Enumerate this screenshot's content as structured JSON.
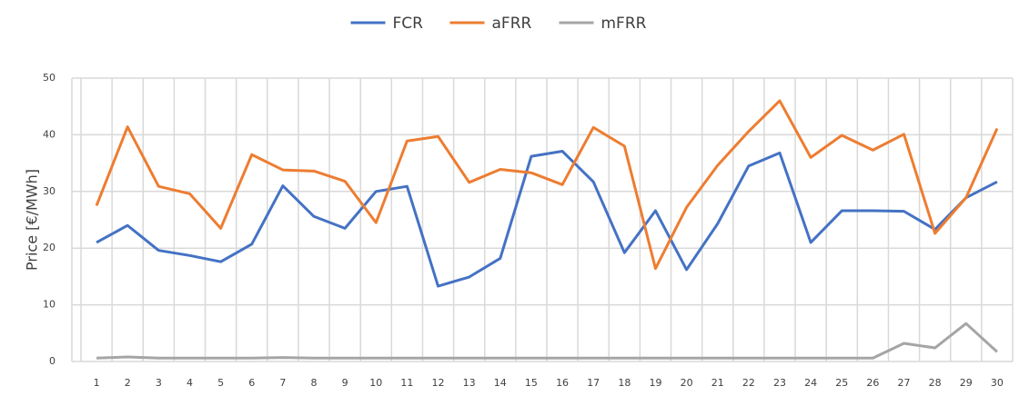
{
  "chart_data": {
    "type": "line",
    "y_label": "Price [€/MWh]",
    "categories": [
      "1",
      "2",
      "3",
      "4",
      "5",
      "6",
      "7",
      "8",
      "9",
      "10",
      "11",
      "12",
      "13",
      "14",
      "15",
      "16",
      "17",
      "18",
      "19",
      "20",
      "21",
      "22",
      "23",
      "24",
      "25",
      "26",
      "27",
      "28",
      "29",
      "30"
    ],
    "series": [
      {
        "name": "FCR",
        "color": "#4472c4",
        "values": [
          21.0,
          24.0,
          19.6,
          18.7,
          17.6,
          20.7,
          31.0,
          25.6,
          23.5,
          30.0,
          30.9,
          13.3,
          14.9,
          18.2,
          36.2,
          37.1,
          31.7,
          19.2,
          26.6,
          16.2,
          24.3,
          34.5,
          36.8,
          21.0,
          26.6,
          26.6,
          26.5,
          23.3,
          28.9,
          31.7
        ]
      },
      {
        "name": "aFRR",
        "color": "#ed7d31",
        "values": [
          27.5,
          41.4,
          30.9,
          29.6,
          23.5,
          36.5,
          33.8,
          33.6,
          31.8,
          24.5,
          38.9,
          39.7,
          31.6,
          33.9,
          33.3,
          31.2,
          41.3,
          38.0,
          16.4,
          27.2,
          34.6,
          40.6,
          46.0,
          36.0,
          39.9,
          37.3,
          40.1,
          22.6,
          28.9,
          41.1
        ]
      },
      {
        "name": "mFRR",
        "color": "#a5a5a5",
        "values": [
          0.6,
          0.8,
          0.6,
          0.6,
          0.6,
          0.6,
          0.7,
          0.6,
          0.6,
          0.6,
          0.6,
          0.6,
          0.6,
          0.6,
          0.6,
          0.6,
          0.6,
          0.6,
          0.6,
          0.6,
          0.6,
          0.6,
          0.6,
          0.6,
          0.6,
          0.6,
          3.2,
          2.4,
          6.7,
          1.7
        ]
      }
    ],
    "ylim": [
      0,
      50
    ],
    "yticks": [
      0,
      10,
      20,
      30,
      40,
      50
    ],
    "grid": true,
    "legend": "top"
  }
}
